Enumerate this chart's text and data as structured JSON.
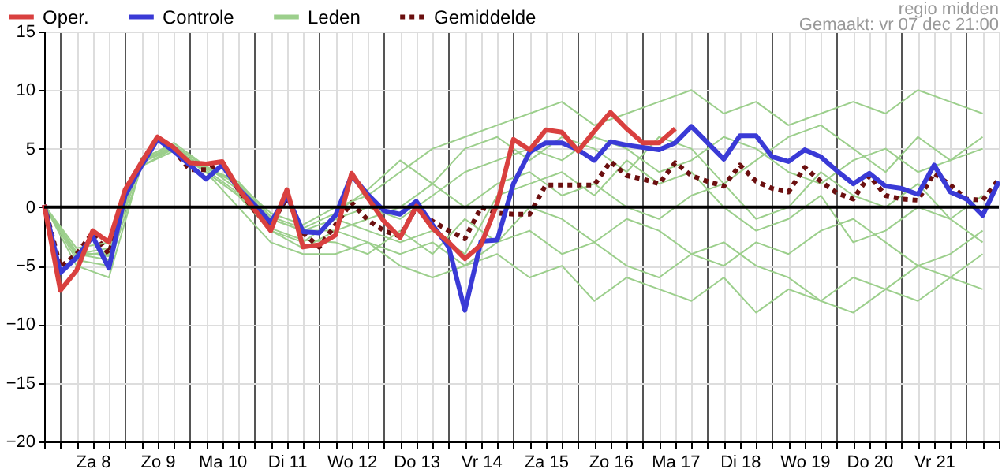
{
  "chart_data": {
    "type": "line",
    "annotations": [
      "regio midden",
      "Gemaakt: vr 07 dec 21:00"
    ],
    "x": [
      "--12-07T18:00",
      "--12-08T00:00",
      "--12-08T06:00",
      "--12-08T12:00",
      "--12-08T18:00",
      "--12-09T00:00",
      "--12-09T06:00",
      "--12-09T12:00",
      "--12-09T18:00",
      "--12-10T00:00",
      "--12-10T06:00",
      "--12-10T12:00",
      "--12-10T18:00",
      "--12-11T00:00",
      "--12-11T06:00",
      "--12-11T12:00",
      "--12-11T18:00",
      "--12-12T00:00",
      "--12-12T06:00",
      "--12-12T12:00",
      "--12-12T18:00",
      "--12-13T00:00",
      "--12-13T06:00",
      "--12-13T12:00",
      "--12-13T18:00",
      "--12-14T00:00",
      "--12-14T06:00",
      "--12-14T12:00",
      "--12-14T18:00",
      "--12-15T00:00",
      "--12-15T06:00",
      "--12-15T12:00",
      "--12-15T18:00",
      "--12-16T00:00",
      "--12-16T06:00",
      "--12-16T12:00",
      "--12-16T18:00",
      "--12-17T00:00",
      "--12-17T06:00",
      "--12-17T12:00",
      "--12-17T18:00",
      "--12-18T00:00",
      "--12-18T06:00",
      "--12-18T12:00",
      "--12-18T18:00",
      "--12-19T00:00",
      "--12-19T06:00",
      "--12-19T12:00",
      "--12-19T18:00",
      "--12-20T00:00",
      "--12-20T06:00",
      "--12-20T12:00",
      "--12-20T18:00",
      "--12-21T00:00",
      "--12-21T06:00",
      "--12-21T12:00",
      "--12-21T18:00",
      "--12-22T00:00",
      "--12-22T06:00",
      "--12-22T12:00"
    ],
    "series": [
      {
        "name": "Oper.",
        "color": "#d9403f",
        "values": [
          0.2,
          -7.1,
          -5.4,
          -2.0,
          -3.0,
          1.5,
          3.8,
          6.0,
          5.1,
          3.8,
          3.7,
          3.9,
          1.6,
          -0.2,
          -2.0,
          1.5,
          -3.4,
          -3.2,
          -2.4,
          2.9,
          0.8,
          -1.2,
          -2.6,
          0.1,
          -1.8,
          -3.0,
          -4.4,
          -3.2,
          0.3,
          5.8,
          4.9,
          6.6,
          6.4,
          4.8,
          6.5,
          8.1,
          6.7,
          5.5,
          5.5,
          6.7,
          null,
          null,
          null,
          null,
          null,
          null,
          null,
          null,
          null,
          null,
          null,
          null,
          null,
          null,
          null,
          null,
          null,
          null,
          null,
          null
        ]
      },
      {
        "name": "Controle",
        "color": "#3a3ad6",
        "values": [
          0.2,
          -5.6,
          -4.3,
          -2.5,
          -5.2,
          1.0,
          3.5,
          5.8,
          4.8,
          3.6,
          2.4,
          3.6,
          1.6,
          0.2,
          -1.3,
          1.0,
          -2.1,
          -2.2,
          -0.7,
          2.7,
          1.1,
          -0.3,
          -0.6,
          0.5,
          -1.5,
          -3.4,
          -8.8,
          -2.9,
          -2.8,
          2.0,
          4.7,
          5.5,
          5.5,
          4.9,
          4.0,
          5.6,
          5.3,
          5.1,
          4.9,
          5.5,
          6.9,
          5.5,
          4.1,
          6.1,
          6.1,
          4.3,
          3.9,
          4.9,
          4.3,
          3.1,
          2.0,
          2.9,
          1.8,
          1.6,
          1.1,
          3.6,
          1.3,
          0.7,
          -0.7,
          2.2
        ]
      },
      {
        "name": "Leden",
        "color": "#9ccf8c",
        "x": [
          "--12-07T18:00",
          "--12-08T06:00",
          "--12-08T18:00",
          "--12-09T06:00",
          "--12-09T18:00",
          "--12-10T06:00",
          "--12-10T18:00",
          "--12-11T06:00",
          "--12-11T18:00",
          "--12-12T06:00",
          "--12-12T18:00",
          "--12-13T06:00",
          "--12-13T18:00",
          "--12-14T06:00",
          "--12-14T18:00",
          "--12-15T06:00",
          "--12-15T18:00",
          "--12-16T06:00",
          "--12-16T18:00",
          "--12-17T06:00",
          "--12-17T18:00",
          "--12-18T06:00",
          "--12-18T18:00",
          "--12-19T06:00",
          "--12-19T18:00",
          "--12-20T06:00",
          "--12-20T18:00",
          "--12-21T06:00",
          "--12-21T18:00",
          "--12-22T06:00"
        ],
        "values": [
          0.2,
          -3.5,
          -3,
          4,
          5.5,
          3.5,
          2,
          -0.5,
          -1.5,
          0,
          1,
          3,
          5,
          6,
          7,
          8,
          9,
          7,
          8,
          9,
          10,
          8,
          9,
          7,
          8,
          9,
          8,
          10,
          9,
          8
        ]
      },
      {
        "name": "Gemiddelde",
        "color": "#6b0f0f",
        "line_style": "dotted",
        "values": [
          0.2,
          -5.1,
          -4.0,
          -2.2,
          -4.0,
          1.0,
          3.8,
          5.9,
          4.9,
          3.2,
          3.2,
          3.7,
          1.5,
          -0.3,
          -1.5,
          0.8,
          -2.2,
          -3.4,
          -1.5,
          0.4,
          -1.1,
          -2.0,
          -2.5,
          0.0,
          -1.2,
          -2.0,
          -2.7,
          0.0,
          -0.5,
          -0.6,
          -0.6,
          1.9,
          1.9,
          1.9,
          1.9,
          3.9,
          2.7,
          2.4,
          2.0,
          3.8,
          2.7,
          2.2,
          1.8,
          3.6,
          2.2,
          1.6,
          1.3,
          3.4,
          2.2,
          1.2,
          0.7,
          2.7,
          1.0,
          0.7,
          0.6,
          2.9,
          1.9,
          0.7,
          0.6,
          2.4
        ]
      },
      {
        "color": "#9ccf8c",
        "x": [
          "--12-07T18:00",
          "--12-08T06:00",
          "--12-08T18:00",
          "--12-09T06:00",
          "--12-09T18:00",
          "--12-10T06:00",
          "--12-10T18:00",
          "--12-11T06:00",
          "--12-11T18:00",
          "--12-12T06:00",
          "--12-12T18:00",
          "--12-13T06:00",
          "--12-13T18:00",
          "--12-14T06:00",
          "--12-14T18:00",
          "--12-15T06:00",
          "--12-15T18:00",
          "--12-16T06:00",
          "--12-16T18:00",
          "--12-17T06:00",
          "--12-17T18:00",
          "--12-18T06:00",
          "--12-18T18:00",
          "--12-19T06:00",
          "--12-19T18:00",
          "--12-20T06:00",
          "--12-20T18:00",
          "--12-21T06:00",
          "--12-21T18:00",
          "--12-22T06:00"
        ],
        "values": [
          0.2,
          -5,
          -6,
          3.5,
          5,
          3,
          0,
          -3,
          -4,
          -4,
          -3,
          -5,
          -6,
          -5,
          -4,
          -6,
          -5,
          -8,
          -6,
          -7,
          -8,
          -6,
          -9,
          -7,
          -8,
          -9,
          -7,
          -8,
          -6,
          -7
        ]
      },
      {
        "color": "#9ccf8c",
        "x": [
          "--12-07T18:00",
          "--12-08T06:00",
          "--12-08T18:00",
          "--12-09T06:00",
          "--12-09T18:00",
          "--12-10T06:00",
          "--12-10T18:00",
          "--12-11T06:00",
          "--12-11T18:00",
          "--12-12T06:00",
          "--12-12T18:00",
          "--12-13T06:00",
          "--12-13T18:00",
          "--12-14T06:00",
          "--12-14T18:00",
          "--12-15T06:00",
          "--12-15T18:00",
          "--12-16T06:00",
          "--12-16T18:00",
          "--12-17T06:00",
          "--12-17T18:00",
          "--12-18T06:00",
          "--12-18T18:00",
          "--12-19T06:00",
          "--12-19T18:00",
          "--12-20T06:00",
          "--12-20T18:00",
          "--12-21T06:00",
          "--12-21T18:00",
          "--12-22T06:00"
        ],
        "values": [
          0.2,
          -4,
          -4.5,
          4,
          5,
          3,
          1,
          -2,
          -3,
          -1,
          -2,
          -3,
          -2,
          -4,
          1,
          2,
          3,
          1,
          4,
          2,
          3,
          0,
          -2,
          -1,
          1,
          -3,
          -2,
          0,
          -1,
          -3
        ]
      },
      {
        "color": "#9ccf8c",
        "x": [
          "--12-07T18:00",
          "--12-08T06:00",
          "--12-08T18:00",
          "--12-09T06:00",
          "--12-09T18:00",
          "--12-10T06:00",
          "--12-10T18:00",
          "--12-11T06:00",
          "--12-11T18:00",
          "--12-12T06:00",
          "--12-12T18:00",
          "--12-13T06:00",
          "--12-13T18:00",
          "--12-14T06:00",
          "--12-14T18:00",
          "--12-15T06:00",
          "--12-15T18:00",
          "--12-16T06:00",
          "--12-16T18:00",
          "--12-17T06:00",
          "--12-17T18:00",
          "--12-18T06:00",
          "--12-18T18:00",
          "--12-19T06:00",
          "--12-19T18:00",
          "--12-20T06:00",
          "--12-20T18:00",
          "--12-21T06:00",
          "--12-21T18:00",
          "--12-22T06:00"
        ],
        "values": [
          0.2,
          -4,
          -3.5,
          4,
          5.2,
          3.5,
          1.5,
          -1,
          -2,
          -1,
          0,
          -1,
          1,
          3,
          4,
          5,
          4,
          6,
          5,
          3,
          4,
          6,
          5,
          3,
          2,
          4,
          5,
          3,
          4,
          5
        ]
      },
      {
        "color": "#9ccf8c",
        "x": [
          "--12-07T18:00",
          "--12-08T06:00",
          "--12-08T18:00",
          "--12-09T06:00",
          "--12-09T18:00",
          "--12-10T06:00",
          "--12-10T18:00",
          "--12-11T06:00",
          "--12-11T18:00",
          "--12-12T06:00",
          "--12-12T18:00",
          "--12-13T06:00",
          "--12-13T18:00",
          "--12-14T06:00",
          "--12-14T18:00",
          "--12-15T06:00",
          "--12-15T18:00",
          "--12-16T06:00",
          "--12-16T18:00",
          "--12-17T06:00",
          "--12-17T18:00",
          "--12-18T06:00",
          "--12-18T18:00",
          "--12-19T06:00",
          "--12-19T18:00",
          "--12-20T06:00",
          "--12-20T18:00",
          "--12-21T06:00",
          "--12-21T18:00",
          "--12-22T06:00"
        ],
        "values": [
          0.2,
          -4.5,
          -5,
          3.5,
          4.8,
          3,
          1,
          -2,
          -3.5,
          -2,
          -3,
          -4,
          -3,
          -5,
          -3,
          -2,
          -4,
          -3,
          -1,
          -2,
          -4,
          -5,
          -3,
          -4,
          -2,
          -1,
          -3,
          -5,
          -4,
          -2
        ]
      },
      {
        "color": "#9ccf8c",
        "x": [
          "--12-07T18:00",
          "--12-08T06:00",
          "--12-08T18:00",
          "--12-09T06:00",
          "--12-09T18:00",
          "--12-10T06:00",
          "--12-10T18:00",
          "--12-11T06:00",
          "--12-11T18:00",
          "--12-12T06:00",
          "--12-12T18:00",
          "--12-13T06:00",
          "--12-13T18:00",
          "--12-14T06:00",
          "--12-14T18:00",
          "--12-15T06:00",
          "--12-15T18:00",
          "--12-16T06:00",
          "--12-16T18:00",
          "--12-17T06:00",
          "--12-17T18:00",
          "--12-18T06:00",
          "--12-18T18:00",
          "--12-19T06:00",
          "--12-19T18:00",
          "--12-20T06:00",
          "--12-20T18:00",
          "--12-21T06:00",
          "--12-21T18:00",
          "--12-22T06:00"
        ],
        "values": [
          0.2,
          -4,
          -4,
          3.8,
          5,
          3.3,
          2,
          -1,
          -2,
          -2,
          -1,
          0,
          2,
          0,
          2,
          3,
          1,
          2,
          0,
          -1,
          1,
          2,
          -1,
          0,
          3,
          1,
          0,
          2,
          -1,
          1
        ]
      },
      {
        "color": "#9ccf8c",
        "x": [
          "--12-07T18:00",
          "--12-08T06:00",
          "--12-08T18:00",
          "--12-09T06:00",
          "--12-09T18:00",
          "--12-10T06:00",
          "--12-10T18:00",
          "--12-11T06:00",
          "--12-11T18:00",
          "--12-12T06:00",
          "--12-12T18:00",
          "--12-13T06:00",
          "--12-13T18:00",
          "--12-14T06:00",
          "--12-14T18:00",
          "--12-15T06:00",
          "--12-15T18:00",
          "--12-16T06:00",
          "--12-16T18:00",
          "--12-17T06:00",
          "--12-17T18:00",
          "--12-18T06:00",
          "--12-18T18:00",
          "--12-19T06:00",
          "--12-19T18:00",
          "--12-20T06:00",
          "--12-20T18:00",
          "--12-21T06:00",
          "--12-21T18:00",
          "--12-22T06:00"
        ],
        "values": [
          0.2,
          -3.8,
          -4.2,
          3.9,
          5.1,
          3.2,
          1.2,
          -1.8,
          -2.8,
          -3,
          -4,
          -2,
          -4,
          -1,
          -3,
          0,
          -1,
          -3,
          -5,
          -6,
          -4,
          -3,
          -5,
          -6,
          -8,
          -6,
          -7,
          -5,
          -6,
          -4
        ]
      },
      {
        "color": "#9ccf8c",
        "x": [
          "--12-07T18:00",
          "--12-08T06:00",
          "--12-08T18:00",
          "--12-09T06:00",
          "--12-09T18:00",
          "--12-10T06:00",
          "--12-10T18:00",
          "--12-11T06:00",
          "--12-11T18:00",
          "--12-12T06:00",
          "--12-12T18:00",
          "--12-13T06:00",
          "--12-13T18:00",
          "--12-14T06:00",
          "--12-14T18:00",
          "--12-15T06:00",
          "--12-15T18:00",
          "--12-16T06:00",
          "--12-16T18:00",
          "--12-17T06:00",
          "--12-17T18:00",
          "--12-18T06:00",
          "--12-18T18:00",
          "--12-19T06:00",
          "--12-19T18:00",
          "--12-20T06:00",
          "--12-20T18:00",
          "--12-21T06:00",
          "--12-21T18:00",
          "--12-22T06:00"
        ],
        "values": [
          0.2,
          -4.2,
          -3.8,
          4.2,
          5.3,
          3.4,
          2.2,
          -0.8,
          -1.8,
          -0.5,
          1.5,
          4,
          2,
          5,
          6,
          4,
          6,
          5,
          3,
          6,
          5,
          2,
          4,
          6,
          7,
          5,
          3,
          6,
          4,
          6
        ]
      }
    ],
    "xlim": [
      "--12-07T18:00",
      "--12-22T12:00"
    ],
    "xticks": [
      {
        "value": "--12-07T18:00",
        "label": null
      },
      {
        "value": "--12-08T00:00",
        "label": null
      },
      {
        "value": "--12-08T06:00",
        "label": null
      },
      {
        "value": "--12-08T12:00",
        "label": "Za 8"
      },
      {
        "value": "--12-08T18:00",
        "label": null
      },
      {
        "value": "--12-09T00:00",
        "label": null
      },
      {
        "value": "--12-09T06:00",
        "label": null
      },
      {
        "value": "--12-09T12:00",
        "label": "Zo 9"
      },
      {
        "value": "--12-09T18:00",
        "label": null
      },
      {
        "value": "--12-10T00:00",
        "label": null
      },
      {
        "value": "--12-10T06:00",
        "label": null
      },
      {
        "value": "--12-10T12:00",
        "label": "Ma 10"
      },
      {
        "value": "--12-10T18:00",
        "label": null
      },
      {
        "value": "--12-11T00:00",
        "label": null
      },
      {
        "value": "--12-11T06:00",
        "label": null
      },
      {
        "value": "--12-11T12:00",
        "label": "Di 11"
      },
      {
        "value": "--12-11T18:00",
        "label": null
      },
      {
        "value": "--12-12T00:00",
        "label": null
      },
      {
        "value": "--12-12T06:00",
        "label": null
      },
      {
        "value": "--12-12T12:00",
        "label": "Wo 12"
      },
      {
        "value": "--12-12T18:00",
        "label": null
      },
      {
        "value": "--12-13T00:00",
        "label": null
      },
      {
        "value": "--12-13T06:00",
        "label": null
      },
      {
        "value": "--12-13T12:00",
        "label": "Do 13"
      },
      {
        "value": "--12-13T18:00",
        "label": null
      },
      {
        "value": "--12-14T00:00",
        "label": null
      },
      {
        "value": "--12-14T06:00",
        "label": null
      },
      {
        "value": "--12-14T12:00",
        "label": "Vr 14"
      },
      {
        "value": "--12-14T18:00",
        "label": null
      },
      {
        "value": "--12-15T00:00",
        "label": null
      },
      {
        "value": "--12-15T06:00",
        "label": null
      },
      {
        "value": "--12-15T12:00",
        "label": "Za 15"
      },
      {
        "value": "--12-15T18:00",
        "label": null
      },
      {
        "value": "--12-16T00:00",
        "label": null
      },
      {
        "value": "--12-16T06:00",
        "label": null
      },
      {
        "value": "--12-16T12:00",
        "label": "Zo 16"
      },
      {
        "value": "--12-16T18:00",
        "label": null
      },
      {
        "value": "--12-17T00:00",
        "label": null
      },
      {
        "value": "--12-17T06:00",
        "label": null
      },
      {
        "value": "--12-17T12:00",
        "label": "Ma 17"
      },
      {
        "value": "--12-17T18:00",
        "label": null
      },
      {
        "value": "--12-18T00:00",
        "label": null
      },
      {
        "value": "--12-18T06:00",
        "label": null
      },
      {
        "value": "--12-18T12:00",
        "label": "Di 18"
      },
      {
        "value": "--12-18T18:00",
        "label": null
      },
      {
        "value": "--12-19T00:00",
        "label": null
      },
      {
        "value": "--12-19T06:00",
        "label": null
      },
      {
        "value": "--12-19T12:00",
        "label": "Wo 19"
      },
      {
        "value": "--12-19T18:00",
        "label": null
      },
      {
        "value": "--12-20T00:00",
        "label": null
      },
      {
        "value": "--12-20T06:00",
        "label": null
      },
      {
        "value": "--12-20T12:00",
        "label": "Do 20"
      },
      {
        "value": "--12-20T18:00",
        "label": null
      },
      {
        "value": "--12-21T00:00",
        "label": null
      },
      {
        "value": "--12-21T06:00",
        "label": null
      },
      {
        "value": "--12-21T12:00",
        "label": "Vr 21"
      },
      {
        "value": "--12-21T18:00",
        "label": null
      },
      {
        "value": "--12-22T00:00",
        "label": null
      },
      {
        "value": "--12-22T06:00",
        "label": null
      },
      {
        "value": "--12-22T12:00",
        "label": null
      }
    ],
    "ylim": [
      -20,
      15
    ],
    "yticks": [
      -20,
      -15,
      -10,
      -5,
      0,
      5,
      10,
      15
    ],
    "ref_lines": [
      {
        "axis": "y",
        "value": 0,
        "color": "#000000"
      }
    ],
    "grid": true,
    "legend": "top left"
  }
}
